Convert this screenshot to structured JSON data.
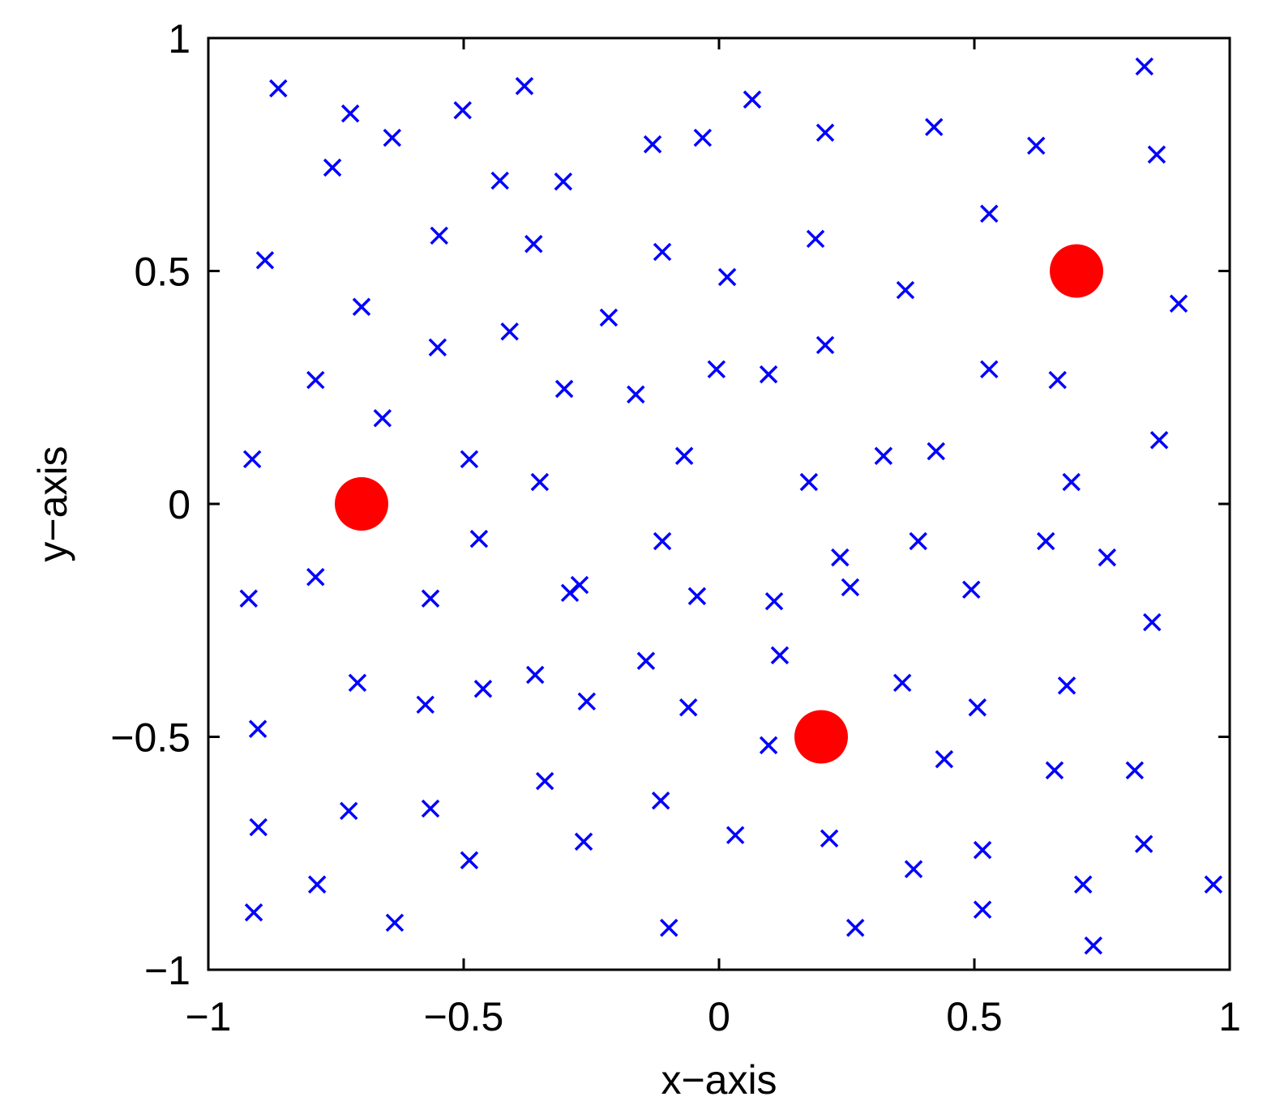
{
  "chart_data": {
    "type": "scatter",
    "xlabel": "x−axis",
    "ylabel": "y−axis",
    "xlim": [
      -1,
      1
    ],
    "ylim": [
      -1,
      1
    ],
    "xticks": [
      {
        "value": -1,
        "label": "−1"
      },
      {
        "value": -0.5,
        "label": "−0.5"
      },
      0,
      0.5,
      1
    ],
    "yticks": [
      {
        "value": -1,
        "label": "−1"
      },
      {
        "value": -0.5,
        "label": "−0.5"
      },
      0,
      0.5,
      1
    ],
    "grid": false,
    "series": [
      {
        "color": "#0000ff",
        "marker": "x",
        "x": [
          -0.863,
          -0.722,
          -0.64,
          -0.757,
          -0.502,
          -0.381,
          -0.429,
          -0.305,
          -0.13,
          -0.032,
          0.065,
          0.208,
          0.421,
          0.621,
          0.833,
          0.857,
          0.529,
          -0.889,
          -0.548,
          -0.363,
          -0.111,
          0.189,
          0.016,
          0.365,
          0.9,
          -0.7,
          -0.41,
          -0.216,
          -0.551,
          0.208,
          -0.79,
          -0.303,
          -0.163,
          -0.005,
          0.097,
          0.529,
          0.663,
          -0.659,
          0.862,
          -0.914,
          -0.489,
          -0.068,
          0.322,
          0.425,
          -0.351,
          0.176,
          0.69,
          -0.47,
          -0.111,
          0.39,
          0.64,
          0.237,
          0.76,
          -0.79,
          -0.921,
          -0.565,
          -0.273,
          -0.292,
          -0.043,
          0.108,
          0.257,
          0.494,
          0.848,
          0.119,
          -0.143,
          -0.36,
          -0.708,
          -0.462,
          -0.259,
          -0.575,
          -0.06,
          0.359,
          0.681,
          0.506,
          -0.903,
          0.097,
          0.441,
          0.657,
          0.814,
          -0.341,
          -0.114,
          -0.565,
          -0.725,
          -0.902,
          0.032,
          0.216,
          -0.265,
          0.832,
          0.516,
          -0.489,
          0.381,
          -0.787,
          0.713,
          0.968,
          -0.911,
          0.516,
          -0.635,
          -0.098,
          0.267,
          0.733
        ],
        "y": [
          0.892,
          0.838,
          0.786,
          0.722,
          0.845,
          0.897,
          0.694,
          0.692,
          0.772,
          0.786,
          0.868,
          0.797,
          0.809,
          0.769,
          0.939,
          0.75,
          0.623,
          0.523,
          0.576,
          0.558,
          0.541,
          0.569,
          0.487,
          0.459,
          0.43,
          0.423,
          0.37,
          0.4,
          0.336,
          0.341,
          0.266,
          0.247,
          0.235,
          0.289,
          0.278,
          0.289,
          0.266,
          0.184,
          0.137,
          0.096,
          0.096,
          0.103,
          0.103,
          0.113,
          0.047,
          0.047,
          0.047,
          -0.075,
          -0.08,
          -0.08,
          -0.08,
          -0.115,
          -0.115,
          -0.157,
          -0.203,
          -0.203,
          -0.174,
          -0.191,
          -0.198,
          -0.209,
          -0.179,
          -0.184,
          -0.254,
          -0.325,
          -0.337,
          -0.367,
          -0.384,
          -0.397,
          -0.424,
          -0.431,
          -0.437,
          -0.384,
          -0.39,
          -0.437,
          -0.483,
          -0.518,
          -0.548,
          -0.572,
          -0.572,
          -0.595,
          -0.637,
          -0.654,
          -0.659,
          -0.694,
          -0.711,
          -0.718,
          -0.725,
          -0.73,
          -0.743,
          -0.765,
          -0.784,
          -0.817,
          -0.817,
          -0.817,
          -0.877,
          -0.871,
          -0.899,
          -0.91,
          -0.91,
          -0.948
        ]
      },
      {
        "color": "#ff0000",
        "marker": "o",
        "x": [
          -0.7,
          0.7,
          0.2
        ],
        "y": [
          0,
          0.5,
          -0.5
        ]
      }
    ]
  }
}
